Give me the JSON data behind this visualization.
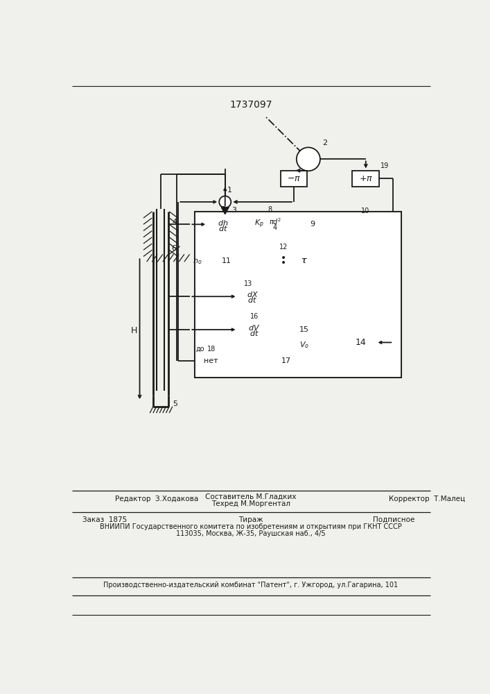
{
  "title": "1737097",
  "bg_color": "#f0f0ec",
  "line_color": "#1a1a1a",
  "lw": 1.3,
  "footer": {
    "line1_left": "Редактор  З.Ходакова",
    "line1_mid1": "Составитель М.Гладких",
    "line1_mid2": "Техред М.Моргентал",
    "line1_right": "Корректор  Т.Малец",
    "line2_left": "Заказ  1875",
    "line2_mid": "Тираж",
    "line2_right": "Подписное",
    "line3": "ВНИИПИ Государственного комитета по изобретениям и открытиям при ГКНТ СССР",
    "line4": "113035, Москва, Ж-35, Раушская наб., 4/5",
    "line5": "Производственно-издательский комбинат \"Патент\", г. Ужгород, ул.Гагарина, 101"
  }
}
